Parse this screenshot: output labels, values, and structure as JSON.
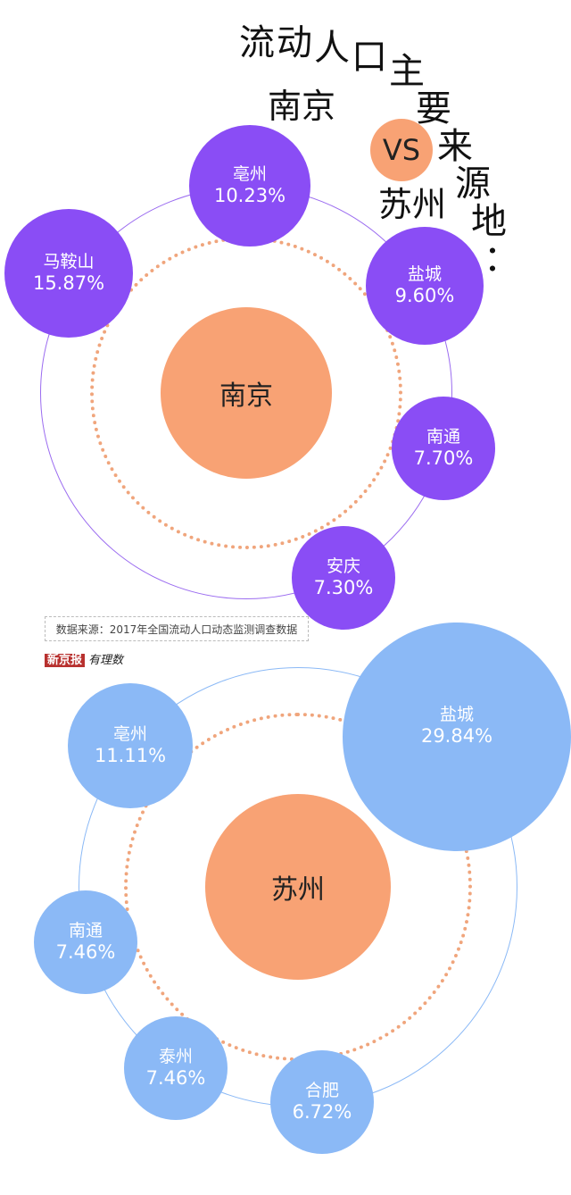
{
  "title_chars": [
    "流",
    "动",
    "人",
    "口",
    "主",
    "要",
    "来",
    "源",
    "地",
    "："
  ],
  "title": "流动人口主要来源地：",
  "vs": {
    "left": "南京",
    "label": "VS",
    "right": "苏州"
  },
  "colors": {
    "nanjing_bubble": "#8a4df5",
    "suzhou_bubble": "#8bb9f6",
    "center": "#f8a274",
    "dotted": "#f0a57c"
  },
  "nanjing": {
    "center": "南京",
    "sources": [
      {
        "name": "亳州",
        "pct": "10.23%",
        "value": 10.23
      },
      {
        "name": "马鞍山",
        "pct": "15.87%",
        "value": 15.87
      },
      {
        "name": "盐城",
        "pct": "9.60%",
        "value": 9.6
      },
      {
        "name": "南通",
        "pct": "7.70%",
        "value": 7.7
      },
      {
        "name": "安庆",
        "pct": "7.30%",
        "value": 7.3
      }
    ]
  },
  "source_note": "数据来源：2017年全国流动人口动态监测调查数据",
  "logo": {
    "a": "新京报",
    "b": "有理数"
  },
  "suzhou": {
    "center": "苏州",
    "sources": [
      {
        "name": "亳州",
        "pct": "11.11%",
        "value": 11.11
      },
      {
        "name": "盐城",
        "pct": "29.84%",
        "value": 29.84
      },
      {
        "name": "南通",
        "pct": "7.46%",
        "value": 7.46
      },
      {
        "name": "泰州",
        "pct": "7.46%",
        "value": 7.46
      },
      {
        "name": "合肥",
        "pct": "6.72%",
        "value": 6.72
      }
    ]
  }
}
